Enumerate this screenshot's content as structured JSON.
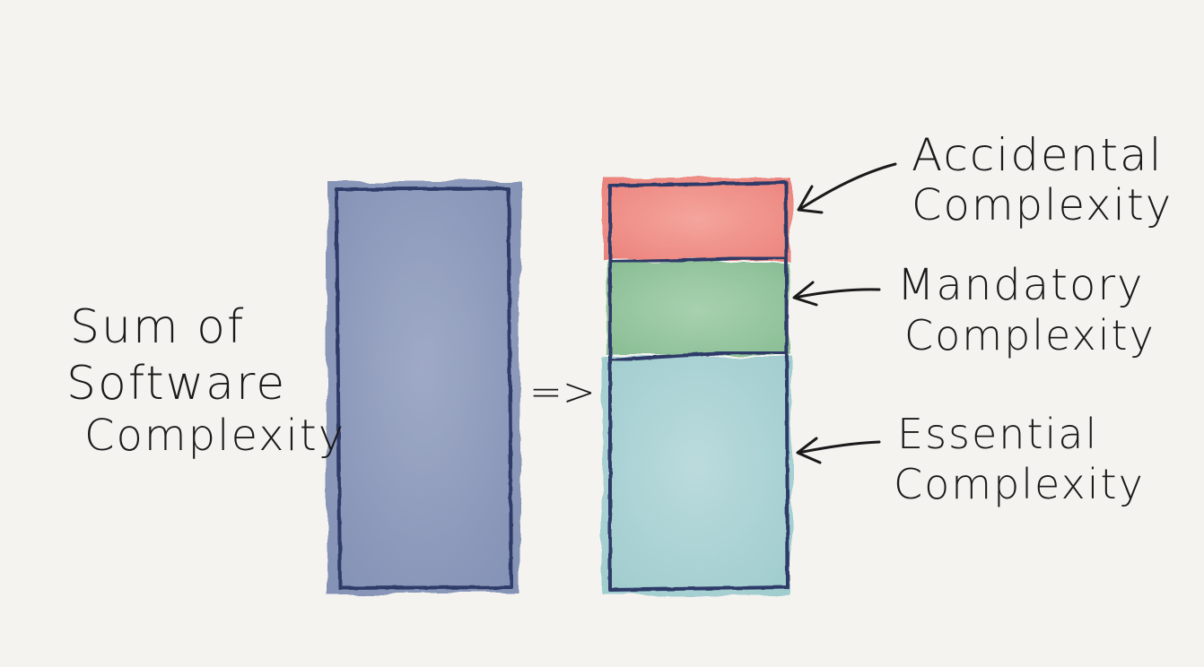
{
  "left_label": {
    "lines": [
      "Sum of",
      "Software",
      "Complexity"
    ]
  },
  "transform_arrow": "=>",
  "right_labels": [
    {
      "key": "accidental",
      "lines": [
        "Accidental",
        "Complexity"
      ]
    },
    {
      "key": "mandatory",
      "lines": [
        "Mandatory",
        "Complexity"
      ]
    },
    {
      "key": "essential",
      "lines": [
        "Essential",
        "Complexity"
      ]
    }
  ],
  "colors": {
    "background": "#f4f3f0",
    "total_fill": "#8d9abc",
    "accidental_fill": "#ee8a82",
    "mandatory_fill": "#8fc49a",
    "essential_fill": "#a9d2d4",
    "outline": "#2e3b68",
    "ink": "#1a1a1a"
  }
}
